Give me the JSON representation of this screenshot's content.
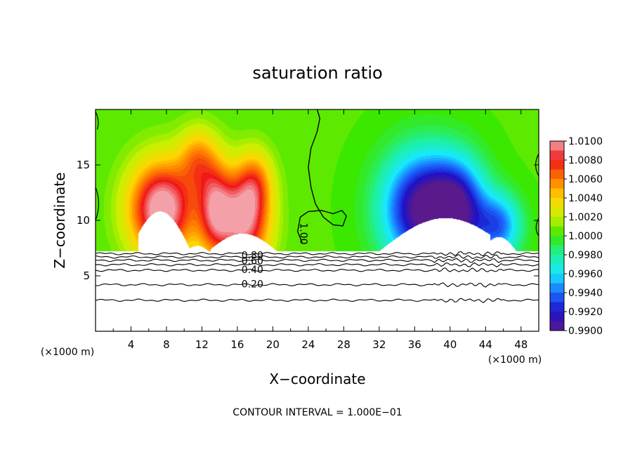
{
  "chart_data": {
    "type": "heatmap",
    "title": "saturation ratio",
    "xlabel": "X−coordinate",
    "ylabel": "Z−coordinate",
    "x_unit": "(×1000 m)",
    "y_unit": "(×1000 m)",
    "xlim": [
      0,
      50
    ],
    "ylim": [
      0,
      20
    ],
    "x_ticks": [
      4,
      8,
      12,
      16,
      20,
      24,
      28,
      32,
      36,
      40,
      44,
      48
    ],
    "y_ticks": [
      5,
      10,
      15
    ],
    "grid": false,
    "colorbar": {
      "placement": "right",
      "labels": [
        "1.0100",
        "1.0080",
        "1.0060",
        "1.0040",
        "1.0020",
        "1.0000",
        "0.9980",
        "0.9960",
        "0.9940",
        "0.9920",
        "0.9900"
      ],
      "min": 0.99,
      "max": 1.01,
      "stops": [
        {
          "value": 0.99,
          "color": "#5a1a8c"
        },
        {
          "value": 0.992,
          "color": "#1e12c8"
        },
        {
          "value": 0.994,
          "color": "#1a6cff"
        },
        {
          "value": 0.996,
          "color": "#18e8ff"
        },
        {
          "value": 0.998,
          "color": "#1ef0a0"
        },
        {
          "value": 1.0,
          "color": "#3ae800"
        },
        {
          "value": 1.002,
          "color": "#c8f000"
        },
        {
          "value": 1.004,
          "color": "#ffd400"
        },
        {
          "value": 1.006,
          "color": "#ff7a00"
        },
        {
          "value": 1.008,
          "color": "#f01818"
        },
        {
          "value": 1.01,
          "color": "#f4a0a8"
        }
      ]
    },
    "field": {
      "lower_boundary_z": 7.2,
      "background_value": 1.0003,
      "features": [
        {
          "x": 7.5,
          "z": 11.0,
          "sx": 2.6,
          "sz": 3.0,
          "amp": 0.011
        },
        {
          "x": 11.5,
          "z": 15.5,
          "sx": 1.5,
          "sz": 2.0,
          "amp": 0.0045
        },
        {
          "x": 13.5,
          "z": 11.0,
          "sx": 1.4,
          "sz": 3.0,
          "amp": 0.0075
        },
        {
          "x": 16.8,
          "z": 10.0,
          "sx": 2.0,
          "sz": 3.0,
          "amp": 0.0095
        },
        {
          "x": 18.0,
          "z": 13.5,
          "sx": 1.4,
          "sz": 2.0,
          "amp": 0.004
        },
        {
          "x": 37.0,
          "z": 11.0,
          "sx": 3.2,
          "sz": 3.5,
          "amp": -0.0105
        },
        {
          "x": 41.0,
          "z": 11.0,
          "sx": 2.2,
          "sz": 3.0,
          "amp": -0.007
        },
        {
          "x": 45.5,
          "z": 9.5,
          "sx": 1.8,
          "sz": 2.0,
          "amp": -0.006
        }
      ],
      "unsaturated_regions": [
        {
          "x_range": [
            4.8,
            10.8
          ],
          "peak_x": 7.3,
          "peak_z": 10.8
        },
        {
          "x_range": [
            10.6,
            12.8
          ],
          "peak_x": 11.5,
          "peak_z": 7.7
        },
        {
          "x_range": [
            13.0,
            20.5
          ],
          "peak_x": 16.6,
          "peak_z": 8.8
        },
        {
          "x_range": [
            32.0,
            44.5
          ],
          "peak_x": 39.5,
          "peak_z": 10.2
        },
        {
          "x_range": [
            43.5,
            47.5
          ],
          "peak_x": 45.5,
          "peak_z": 8.5
        }
      ]
    },
    "contours": [
      {
        "label": "1.00",
        "label_x": 23.4,
        "label_z": 8.8
      },
      {
        "label": "0.80",
        "label_x": 17.7,
        "label_z": 6.8
      },
      {
        "label": "0.60",
        "label_x": 17.7,
        "label_z": 6.3
      },
      {
        "label": "0.40",
        "label_x": 17.7,
        "label_z": 5.5
      },
      {
        "label": "0.20",
        "label_x": 17.7,
        "label_z": 4.2
      }
    ],
    "subsaturated_levels_z": [
      7.0,
      6.7,
      6.4,
      6.0,
      5.5,
      4.2,
      2.8
    ],
    "footer": "CONTOUR INTERVAL = 1.000E−01"
  }
}
